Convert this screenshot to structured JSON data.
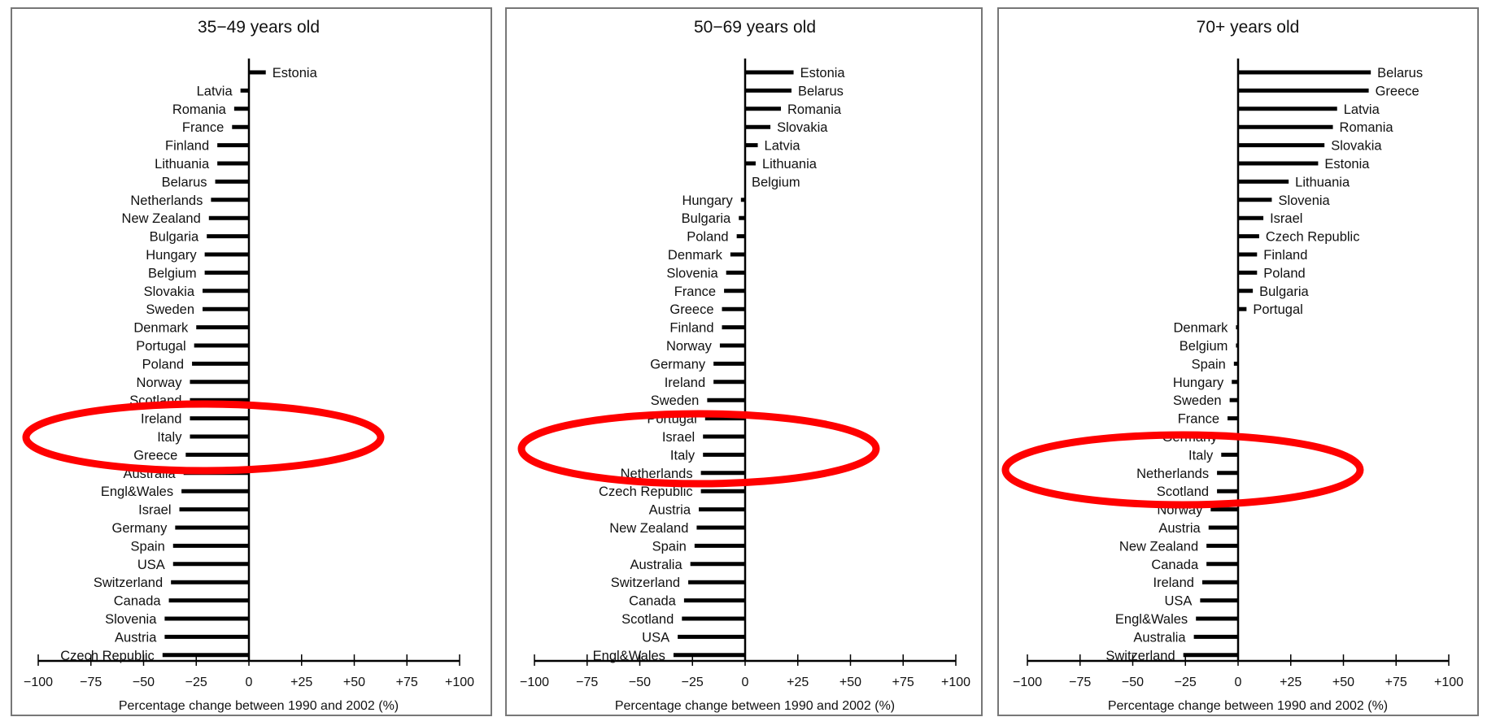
{
  "chart_data": [
    {
      "type": "bar",
      "orientation": "horizontal",
      "title": "35−49 years old",
      "xlabel": "Percentage change between 1990 and 2002 (%)",
      "xlim": [
        -100,
        100
      ],
      "xticks": [
        "−100",
        "−75",
        "−50",
        "−25",
        "0",
        "+25",
        "+50",
        "+75",
        "+100"
      ],
      "categories": [
        "Estonia",
        "Latvia",
        "Romania",
        "France",
        "Finland",
        "Lithuania",
        "Belarus",
        "Netherlands",
        "New Zealand",
        "Bulgaria",
        "Hungary",
        "Belgium",
        "Slovakia",
        "Sweden",
        "Denmark",
        "Portugal",
        "Poland",
        "Norway",
        "Scotland",
        "Ireland",
        "Italy",
        "Greece",
        "Australia",
        "Engl&Wales",
        "Israel",
        "Germany",
        "Spain",
        "USA",
        "Switzerland",
        "Canada",
        "Slovenia",
        "Austria",
        "Czech Republic"
      ],
      "values": [
        8,
        -4,
        -7,
        -8,
        -15,
        -15,
        -16,
        -18,
        -19,
        -20,
        -21,
        -21,
        -22,
        -22,
        -25,
        -26,
        -27,
        -28,
        -28,
        -28,
        -28,
        -30,
        -31,
        -32,
        -33,
        -35,
        -36,
        -36,
        -37,
        -38,
        -40,
        -40,
        -41
      ],
      "highlight": [
        "Ireland",
        "Italy",
        "Greece"
      ]
    },
    {
      "type": "bar",
      "orientation": "horizontal",
      "title": "50−69 years old",
      "xlabel": "Percentage change between 1990 and 2002 (%)",
      "xlim": [
        -100,
        100
      ],
      "xticks": [
        "−100",
        "−75",
        "−50",
        "−25",
        "0",
        "+25",
        "+50",
        "+75",
        "+100"
      ],
      "categories": [
        "Estonia",
        "Belarus",
        "Romania",
        "Slovakia",
        "Latvia",
        "Lithuania",
        "Belgium",
        "Hungary",
        "Bulgaria",
        "Poland",
        "Denmark",
        "Slovenia",
        "France",
        "Greece",
        "Finland",
        "Norway",
        "Germany",
        "Ireland",
        "Sweden",
        "Portugal",
        "Israel",
        "Italy",
        "Netherlands",
        "Czech Republic",
        "Austria",
        "New Zealand",
        "Spain",
        "Australia",
        "Switzerland",
        "Canada",
        "Scotland",
        "USA",
        "Engl&Wales"
      ],
      "values": [
        23,
        22,
        17,
        12,
        6,
        5,
        0,
        -2,
        -3,
        -4,
        -7,
        -9,
        -10,
        -11,
        -11,
        -12,
        -15,
        -15,
        -18,
        -19,
        -20,
        -20,
        -21,
        -21,
        -22,
        -23,
        -24,
        -26,
        -27,
        -29,
        -30,
        -32,
        -34
      ],
      "highlight": [
        "Israel",
        "Italy",
        "Netherlands"
      ]
    },
    {
      "type": "bar",
      "orientation": "horizontal",
      "title": "70+ years old",
      "xlabel": "Percentage change between 1990 and 2002 (%)",
      "xlim": [
        -100,
        100
      ],
      "xticks": [
        "−100",
        "−75",
        "−50",
        "−25",
        "0",
        "+25",
        "+50",
        "+75",
        "+100"
      ],
      "categories": [
        "Belarus",
        "Greece",
        "Latvia",
        "Romania",
        "Slovakia",
        "Estonia",
        "Lithuania",
        "Slovenia",
        "Israel",
        "Czech Republic",
        "Finland",
        "Poland",
        "Bulgaria",
        "Portugal",
        "Denmark",
        "Belgium",
        "Spain",
        "Hungary",
        "Sweden",
        "France",
        "Germany",
        "Italy",
        "Netherlands",
        "Scotland",
        "Norway",
        "Austria",
        "New Zealand",
        "Canada",
        "Ireland",
        "USA",
        "Engl&Wales",
        "Australia",
        "Switzerland"
      ],
      "values": [
        63,
        62,
        47,
        45,
        41,
        38,
        24,
        16,
        12,
        10,
        9,
        9,
        7,
        4,
        -1,
        -1,
        -2,
        -3,
        -4,
        -5,
        -6,
        -8,
        -10,
        -10,
        -13,
        -14,
        -15,
        -15,
        -17,
        -18,
        -20,
        -21,
        -26
      ],
      "highlight": [
        "Italy",
        "Netherlands",
        "Scotland"
      ]
    }
  ]
}
